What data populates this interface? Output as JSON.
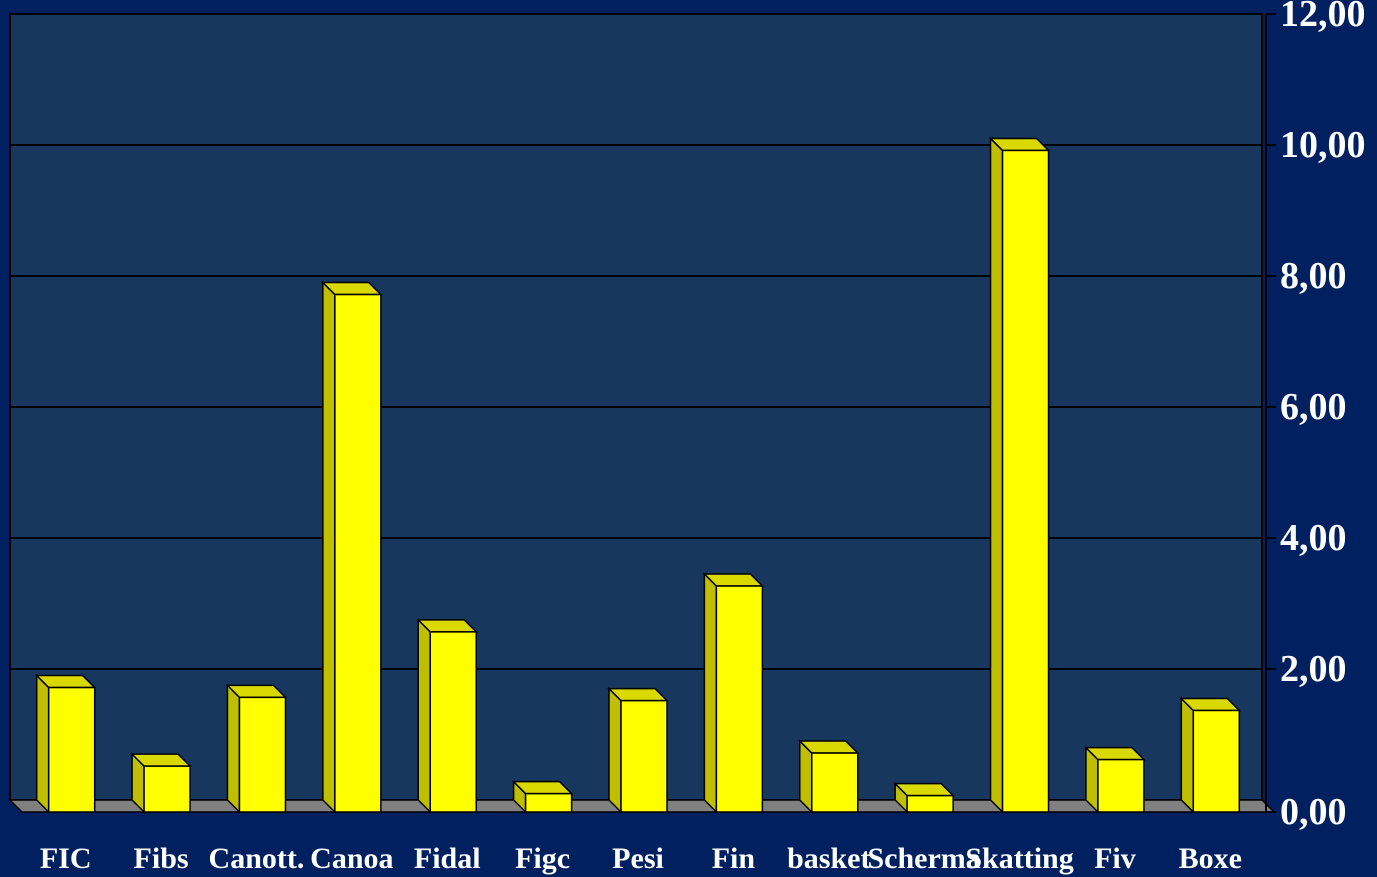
{
  "chart_data": {
    "type": "bar",
    "categories": [
      "FIC",
      "Fibs",
      "Canott.",
      "Canoa",
      "Fidal",
      "Figc",
      "Pesi",
      "Fin",
      "basket",
      "Scherma",
      "Skatting",
      "Fiv",
      "Boxe"
    ],
    "values": [
      1.9,
      0.7,
      1.75,
      7.9,
      2.75,
      0.28,
      1.7,
      3.45,
      0.9,
      0.25,
      10.1,
      0.8,
      1.55
    ],
    "ylim": [
      0,
      12
    ],
    "yticks": [
      "0,00",
      "2,00",
      "4,00",
      "6,00",
      "8,00",
      "10,00",
      "12,00"
    ],
    "y_axis_side": "right",
    "grid": true,
    "colors": {
      "background": "#002060",
      "plot_area": "#17375e",
      "bar_front": "#ffff00",
      "bar_side": "#bfbf00",
      "bar_top": "#d9d900",
      "floor": "#808080",
      "grid": "#000000",
      "text": "#ffffff"
    }
  }
}
